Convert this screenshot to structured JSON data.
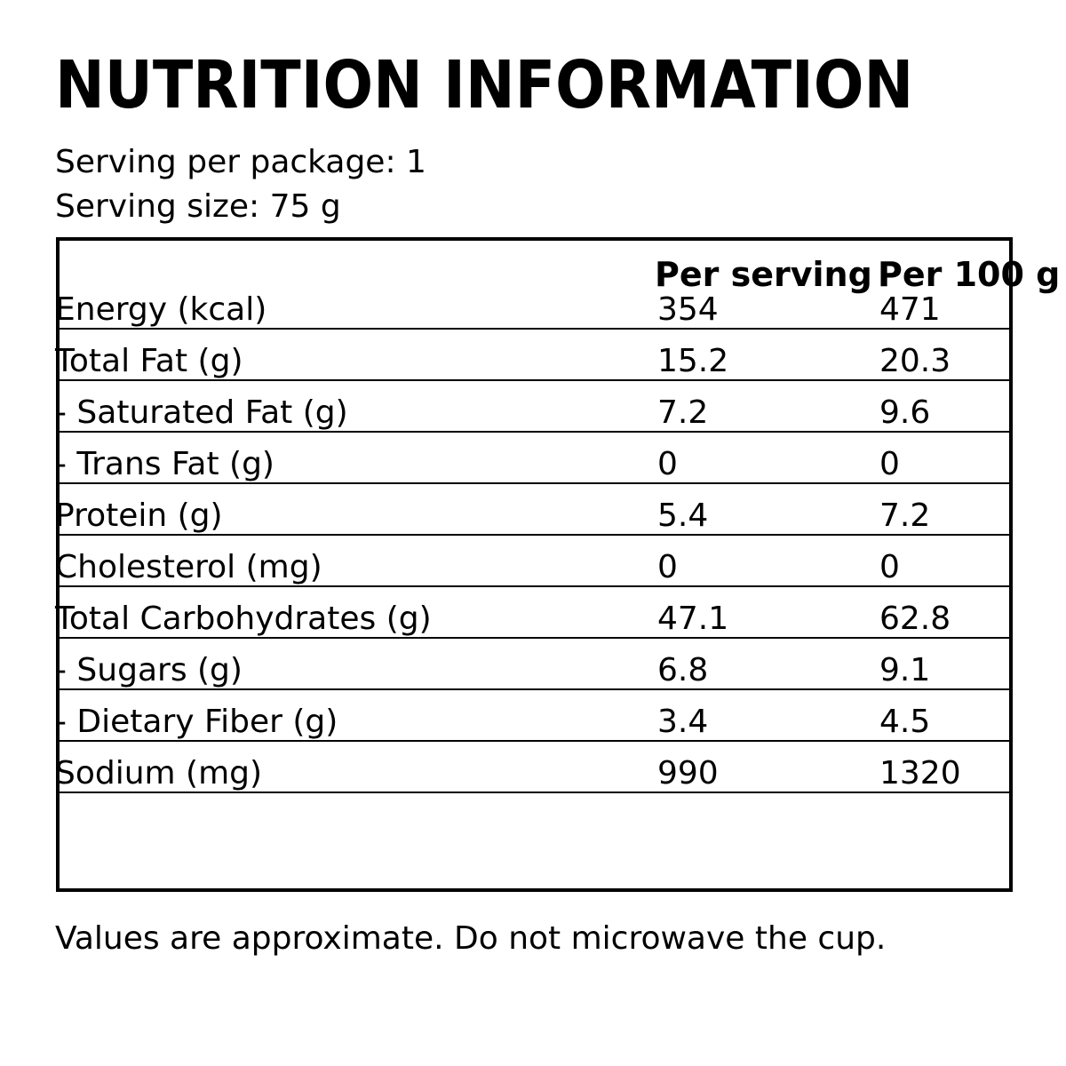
{
  "title": "NUTRITION INFORMATION",
  "serving": {
    "per_package": "Serving per package: 1",
    "size": "Serving size: 75 g"
  },
  "table": {
    "columns": [
      "Per serving",
      "Per 100 g"
    ],
    "rows": [
      {
        "label": "Energy (kcal)",
        "per_serving": "354",
        "per_100g": "471"
      },
      {
        "label": "Total Fat (g)",
        "per_serving": "15.2",
        "per_100g": "20.3"
      },
      {
        "label": "- Saturated Fat (g)",
        "per_serving": "7.2",
        "per_100g": "9.6"
      },
      {
        "label": "- Trans Fat (g)",
        "per_serving": "0",
        "per_100g": "0"
      },
      {
        "label": "Protein (g)",
        "per_serving": "5.4",
        "per_100g": "7.2"
      },
      {
        "label": "Cholesterol (mg)",
        "per_serving": "0",
        "per_100g": "0"
      },
      {
        "label": "Total Carbohydrates (g)",
        "per_serving": "47.1",
        "per_100g": "62.8"
      },
      {
        "label": "- Sugars (g)",
        "per_serving": "6.8",
        "per_100g": "9.1"
      },
      {
        "label": "- Dietary Fiber (g)",
        "per_serving": "3.4",
        "per_100g": "4.5"
      },
      {
        "label": "Sodium (mg)",
        "per_serving": "990",
        "per_100g": "1320"
      }
    ]
  },
  "footer": "Values are approximate. Do not microwave the cup.",
  "colors": {
    "ink": "#000000",
    "background": "#ffffff"
  }
}
